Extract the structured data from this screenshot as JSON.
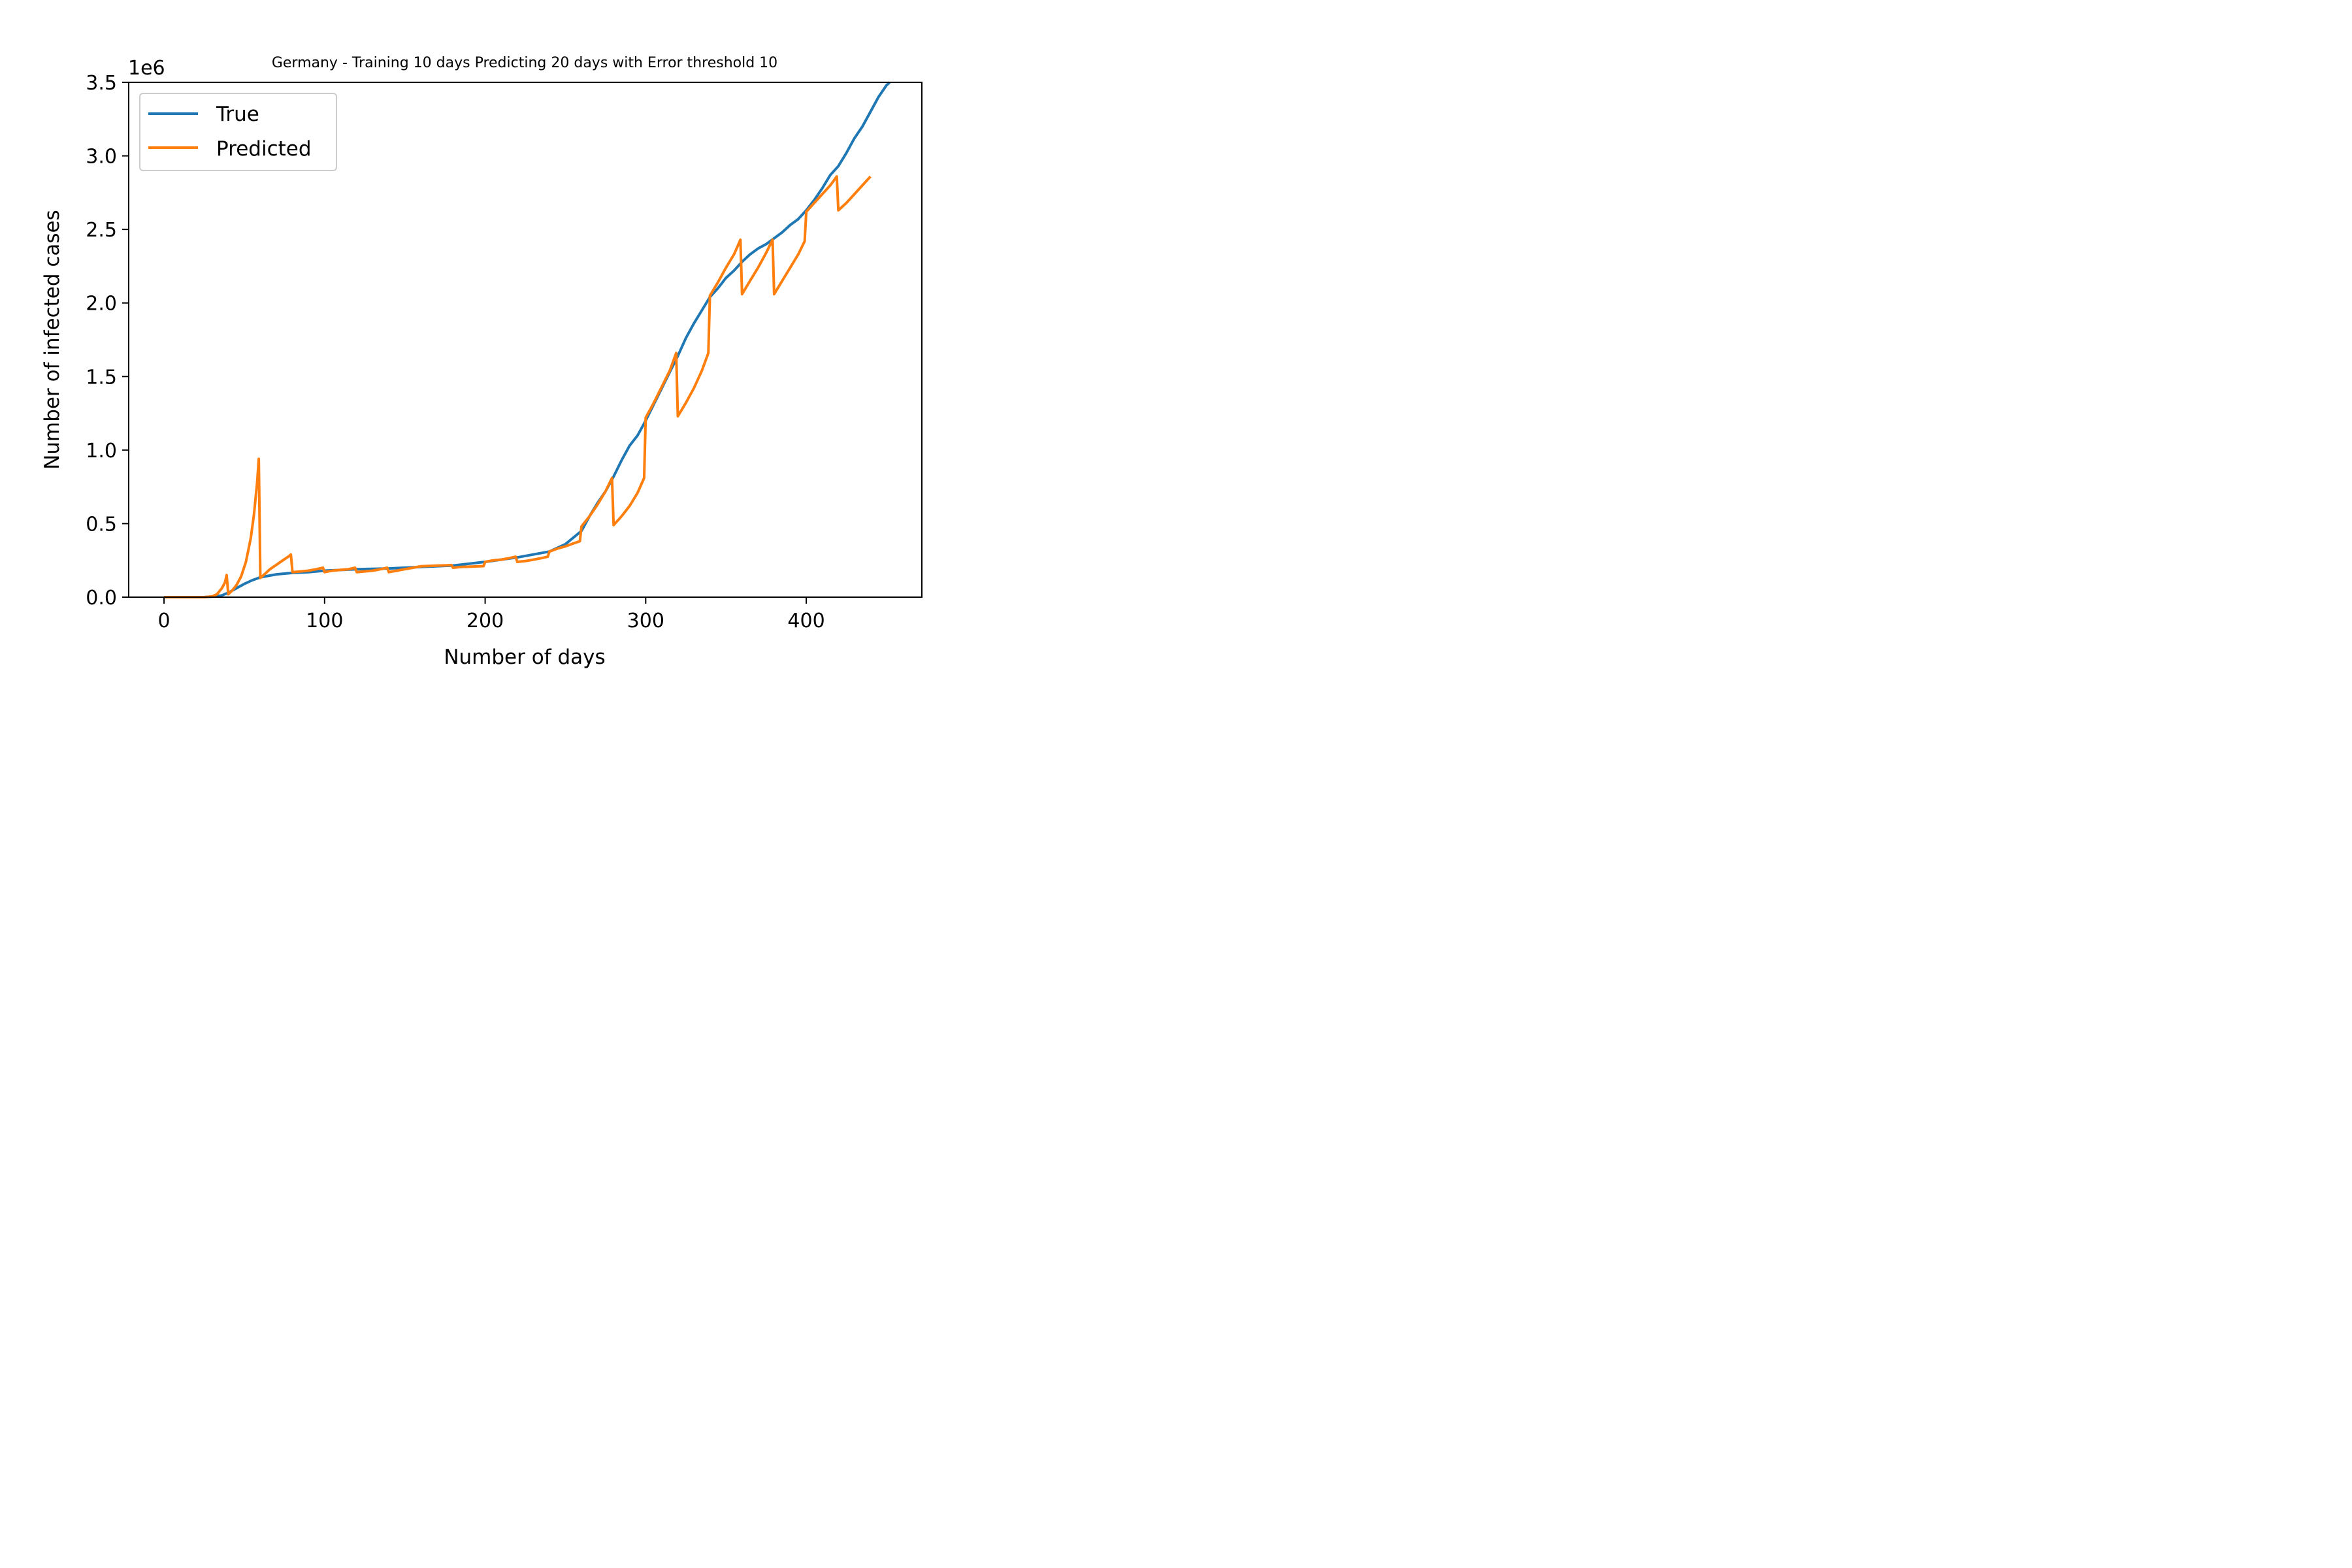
{
  "chart_data": {
    "type": "line",
    "title": "Germany - Training 10 days Predicting 20 days with Error threshold 10",
    "xlabel": "Number of days",
    "ylabel": "Number of infected cases",
    "y_offset_label": "1e6",
    "xlim": [
      -22,
      472
    ],
    "ylim": [
      0,
      3.5
    ],
    "xticks": [
      0,
      100,
      200,
      300,
      400
    ],
    "xtick_labels": [
      "0",
      "100",
      "200",
      "300",
      "400"
    ],
    "yticks": [
      0,
      0.5,
      1.0,
      1.5,
      2.0,
      2.5,
      3.0,
      3.5
    ],
    "ytick_labels": [
      "0.0",
      "0.5",
      "1.0",
      "1.5",
      "2.0",
      "2.5",
      "3.0",
      "3.5"
    ],
    "legend_position": "top-left",
    "series": [
      {
        "name": "True",
        "color": "#1f77b4",
        "x": [
          0,
          25,
          32,
          36,
          40,
          45,
          50,
          55,
          60,
          70,
          80,
          90,
          100,
          120,
          140,
          160,
          180,
          200,
          220,
          240,
          250,
          260,
          265,
          270,
          275,
          280,
          285,
          290,
          295,
          300,
          305,
          310,
          315,
          320,
          325,
          330,
          335,
          340,
          345,
          350,
          355,
          360,
          365,
          370,
          375,
          380,
          385,
          390,
          395,
          400,
          405,
          410,
          415,
          420,
          425,
          430,
          435,
          440,
          445,
          450,
          452
        ],
        "y": [
          0,
          0,
          0.005,
          0.012,
          0.03,
          0.06,
          0.09,
          0.115,
          0.135,
          0.155,
          0.165,
          0.17,
          0.18,
          0.19,
          0.195,
          0.205,
          0.215,
          0.24,
          0.27,
          0.31,
          0.36,
          0.45,
          0.55,
          0.64,
          0.72,
          0.82,
          0.93,
          1.03,
          1.1,
          1.2,
          1.31,
          1.42,
          1.53,
          1.64,
          1.76,
          1.86,
          1.95,
          2.04,
          2.1,
          2.17,
          2.22,
          2.28,
          2.33,
          2.37,
          2.4,
          2.44,
          2.48,
          2.53,
          2.57,
          2.63,
          2.7,
          2.78,
          2.87,
          2.93,
          3.02,
          3.12,
          3.2,
          3.3,
          3.4,
          3.48,
          3.5
        ]
      },
      {
        "name": "Predicted",
        "color": "#ff7f0e",
        "x": [
          0,
          25,
          30,
          33,
          36,
          38,
          39,
          40,
          42,
          45,
          48,
          51,
          54,
          56,
          58,
          59,
          60,
          63,
          66,
          70,
          74,
          78,
          79,
          80,
          85,
          90,
          95,
          99,
          100,
          105,
          110,
          115,
          119,
          120,
          125,
          130,
          135,
          139,
          140,
          145,
          150,
          155,
          160,
          165,
          170,
          175,
          179,
          180,
          185,
          190,
          195,
          199,
          200,
          205,
          210,
          215,
          219,
          220,
          225,
          230,
          235,
          239,
          240,
          245,
          250,
          255,
          259,
          260,
          265,
          270,
          275,
          279,
          280,
          285,
          290,
          295,
          299,
          300,
          305,
          310,
          315,
          319,
          320,
          325,
          330,
          335,
          339,
          340,
          345,
          350,
          355,
          359,
          360,
          365,
          370,
          375,
          379,
          380,
          385,
          390,
          395,
          399,
          400,
          405,
          410,
          415,
          419,
          420,
          425,
          430,
          435,
          440
        ],
        "y": [
          0,
          0,
          0.005,
          0.02,
          0.06,
          0.1,
          0.15,
          0.02,
          0.04,
          0.08,
          0.14,
          0.24,
          0.4,
          0.56,
          0.78,
          0.94,
          0.13,
          0.16,
          0.19,
          0.22,
          0.25,
          0.28,
          0.29,
          0.17,
          0.175,
          0.18,
          0.19,
          0.2,
          0.17,
          0.18,
          0.185,
          0.19,
          0.2,
          0.17,
          0.175,
          0.18,
          0.19,
          0.2,
          0.17,
          0.18,
          0.19,
          0.2,
          0.21,
          0.212,
          0.214,
          0.216,
          0.218,
          0.2,
          0.205,
          0.207,
          0.209,
          0.211,
          0.24,
          0.25,
          0.255,
          0.265,
          0.275,
          0.24,
          0.245,
          0.255,
          0.265,
          0.275,
          0.31,
          0.33,
          0.345,
          0.365,
          0.38,
          0.48,
          0.55,
          0.63,
          0.72,
          0.81,
          0.49,
          0.55,
          0.62,
          0.71,
          0.81,
          1.22,
          1.32,
          1.43,
          1.54,
          1.66,
          1.23,
          1.32,
          1.42,
          1.54,
          1.66,
          2.05,
          2.14,
          2.24,
          2.33,
          2.43,
          2.06,
          2.15,
          2.24,
          2.34,
          2.43,
          2.06,
          2.15,
          2.24,
          2.33,
          2.42,
          2.62,
          2.68,
          2.74,
          2.8,
          2.86,
          2.63,
          2.68,
          2.74,
          2.8,
          2.86
        ]
      }
    ]
  }
}
